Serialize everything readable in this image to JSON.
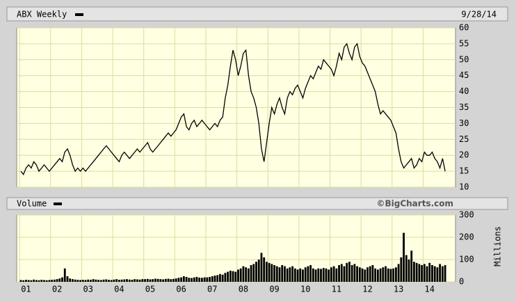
{
  "chart_data": [
    {
      "type": "line",
      "title": "ABX Weekly",
      "date": "9/28/14",
      "color": "#000000",
      "grid": true,
      "ylim": [
        10,
        60
      ],
      "yticks": [
        10,
        15,
        20,
        25,
        30,
        35,
        40,
        45,
        50,
        55,
        60
      ],
      "values": [
        15,
        14,
        16,
        17,
        16,
        18,
        17,
        15,
        16,
        17,
        16,
        15,
        16,
        17,
        18,
        19,
        18,
        21,
        22,
        20,
        17,
        15,
        16,
        15,
        16,
        15,
        16,
        17,
        18,
        19,
        20,
        21,
        22,
        23,
        22,
        21,
        20,
        19,
        18,
        20,
        21,
        20,
        19,
        20,
        21,
        22,
        21,
        22,
        23,
        24,
        22,
        21,
        22,
        23,
        24,
        25,
        26,
        27,
        26,
        27,
        28,
        30,
        32,
        33,
        29,
        28,
        30,
        31,
        29,
        30,
        31,
        30,
        29,
        28,
        29,
        30,
        29,
        31,
        32,
        38,
        42,
        48,
        53,
        50,
        45,
        48,
        52,
        53,
        45,
        40,
        38,
        35,
        30,
        22,
        18,
        24,
        30,
        35,
        33,
        36,
        38,
        35,
        33,
        38,
        40,
        39,
        41,
        42,
        40,
        38,
        41,
        43,
        45,
        44,
        46,
        48,
        47,
        50,
        49,
        48,
        47,
        45,
        48,
        52,
        50,
        54,
        55,
        52,
        50,
        54,
        55,
        51,
        49,
        48,
        46,
        44,
        42,
        40,
        36,
        33,
        34,
        33,
        32,
        31,
        29,
        27,
        22,
        18,
        16,
        17,
        18,
        19,
        16,
        17,
        19,
        18,
        21,
        20,
        20,
        21,
        19,
        18,
        16,
        19,
        15
      ]
    },
    {
      "type": "bar",
      "title": "Volume",
      "source": "©BigCharts.com",
      "y_label": "Millions",
      "color": "#000000",
      "grid": true,
      "ylim": [
        0,
        300
      ],
      "yticks": [
        0,
        100,
        200,
        300
      ],
      "x_labels": [
        "01",
        "02",
        "03",
        "04",
        "05",
        "06",
        "07",
        "08",
        "09",
        "10",
        "11",
        "12",
        "13",
        "14"
      ],
      "values": [
        8,
        7,
        9,
        8,
        7,
        10,
        8,
        7,
        9,
        8,
        7,
        8,
        9,
        10,
        12,
        15,
        20,
        60,
        25,
        15,
        12,
        10,
        9,
        8,
        9,
        8,
        10,
        9,
        12,
        10,
        9,
        8,
        10,
        11,
        9,
        8,
        10,
        12,
        9,
        10,
        11,
        12,
        10,
        9,
        12,
        11,
        10,
        12,
        12,
        13,
        11,
        12,
        14,
        13,
        12,
        11,
        13,
        14,
        12,
        13,
        15,
        18,
        20,
        25,
        22,
        18,
        17,
        20,
        22,
        19,
        18,
        20,
        20,
        22,
        25,
        28,
        30,
        35,
        32,
        40,
        45,
        50,
        48,
        45,
        55,
        60,
        70,
        65,
        60,
        75,
        80,
        90,
        100,
        130,
        110,
        90,
        85,
        80,
        75,
        70,
        65,
        75,
        70,
        60,
        65,
        70,
        60,
        55,
        60,
        55,
        65,
        70,
        75,
        60,
        55,
        60,
        58,
        62,
        60,
        55,
        65,
        70,
        60,
        75,
        80,
        70,
        85,
        90,
        75,
        80,
        70,
        65,
        60,
        55,
        65,
        70,
        75,
        60,
        55,
        60,
        65,
        70,
        60,
        58,
        60,
        65,
        80,
        110,
        220,
        120,
        100,
        140,
        90,
        85,
        80,
        75,
        80,
        70,
        85,
        75,
        70,
        65,
        80,
        70,
        75
      ]
    }
  ]
}
